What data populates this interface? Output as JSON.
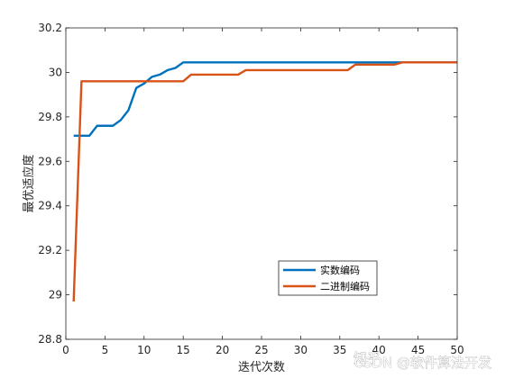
{
  "chart_data": {
    "type": "line",
    "title": "",
    "xlabel": "迭代次数",
    "ylabel": "最优适应度",
    "xlim": [
      0,
      50
    ],
    "ylim": [
      28.8,
      30.2
    ],
    "xticks": [
      0,
      5,
      10,
      15,
      20,
      25,
      30,
      35,
      40,
      45,
      50
    ],
    "yticks": [
      28.8,
      29,
      29.2,
      29.4,
      29.6,
      29.8,
      30,
      30.2
    ],
    "ytick_labels": [
      "28.8",
      "29",
      "29.2",
      "29.4",
      "29.6",
      "29.8",
      "30",
      "30.2"
    ],
    "grid": false,
    "legend_position": "bottom-center",
    "series": [
      {
        "name": "实数编码",
        "color": "#0072BD",
        "x": [
          1,
          2,
          3,
          4,
          5,
          6,
          7,
          8,
          9,
          10,
          11,
          12,
          13,
          14,
          15,
          16,
          17,
          18,
          19,
          20,
          21,
          22,
          23,
          24,
          25,
          26,
          27,
          28,
          29,
          30,
          31,
          32,
          33,
          34,
          35,
          36,
          37,
          38,
          39,
          40,
          41,
          42,
          43,
          44,
          45,
          46,
          47,
          48,
          49,
          50
        ],
        "y": [
          29.715,
          29.715,
          29.715,
          29.76,
          29.76,
          29.76,
          29.785,
          29.83,
          29.93,
          29.95,
          29.98,
          29.99,
          30.01,
          30.02,
          30.045,
          30.045,
          30.045,
          30.045,
          30.045,
          30.045,
          30.045,
          30.045,
          30.045,
          30.045,
          30.045,
          30.045,
          30.045,
          30.045,
          30.045,
          30.045,
          30.045,
          30.045,
          30.045,
          30.045,
          30.045,
          30.045,
          30.045,
          30.045,
          30.045,
          30.045,
          30.045,
          30.045,
          30.045,
          30.045,
          30.045,
          30.045,
          30.045,
          30.045,
          30.045,
          30.045
        ]
      },
      {
        "name": "二进制编码",
        "color": "#D95319",
        "x": [
          1,
          2,
          3,
          4,
          5,
          6,
          7,
          8,
          9,
          10,
          11,
          12,
          13,
          14,
          15,
          16,
          17,
          18,
          19,
          20,
          21,
          22,
          23,
          24,
          25,
          26,
          27,
          28,
          29,
          30,
          31,
          32,
          33,
          34,
          35,
          36,
          37,
          38,
          39,
          40,
          41,
          42,
          43,
          44,
          45,
          46,
          47,
          48,
          49,
          50
        ],
        "y": [
          28.97,
          29.96,
          29.96,
          29.96,
          29.96,
          29.96,
          29.96,
          29.96,
          29.96,
          29.96,
          29.96,
          29.96,
          29.96,
          29.96,
          29.96,
          29.99,
          29.99,
          29.99,
          29.99,
          29.99,
          29.99,
          29.99,
          30.01,
          30.01,
          30.01,
          30.01,
          30.01,
          30.01,
          30.01,
          30.01,
          30.01,
          30.01,
          30.01,
          30.01,
          30.01,
          30.01,
          30.035,
          30.035,
          30.035,
          30.035,
          30.035,
          30.035,
          30.045,
          30.045,
          30.045,
          30.045,
          30.045,
          30.045,
          30.045,
          30.045
        ]
      }
    ]
  },
  "watermark": {
    "text": "CSDN @软件算法开发",
    "logo_text": "知乎"
  }
}
